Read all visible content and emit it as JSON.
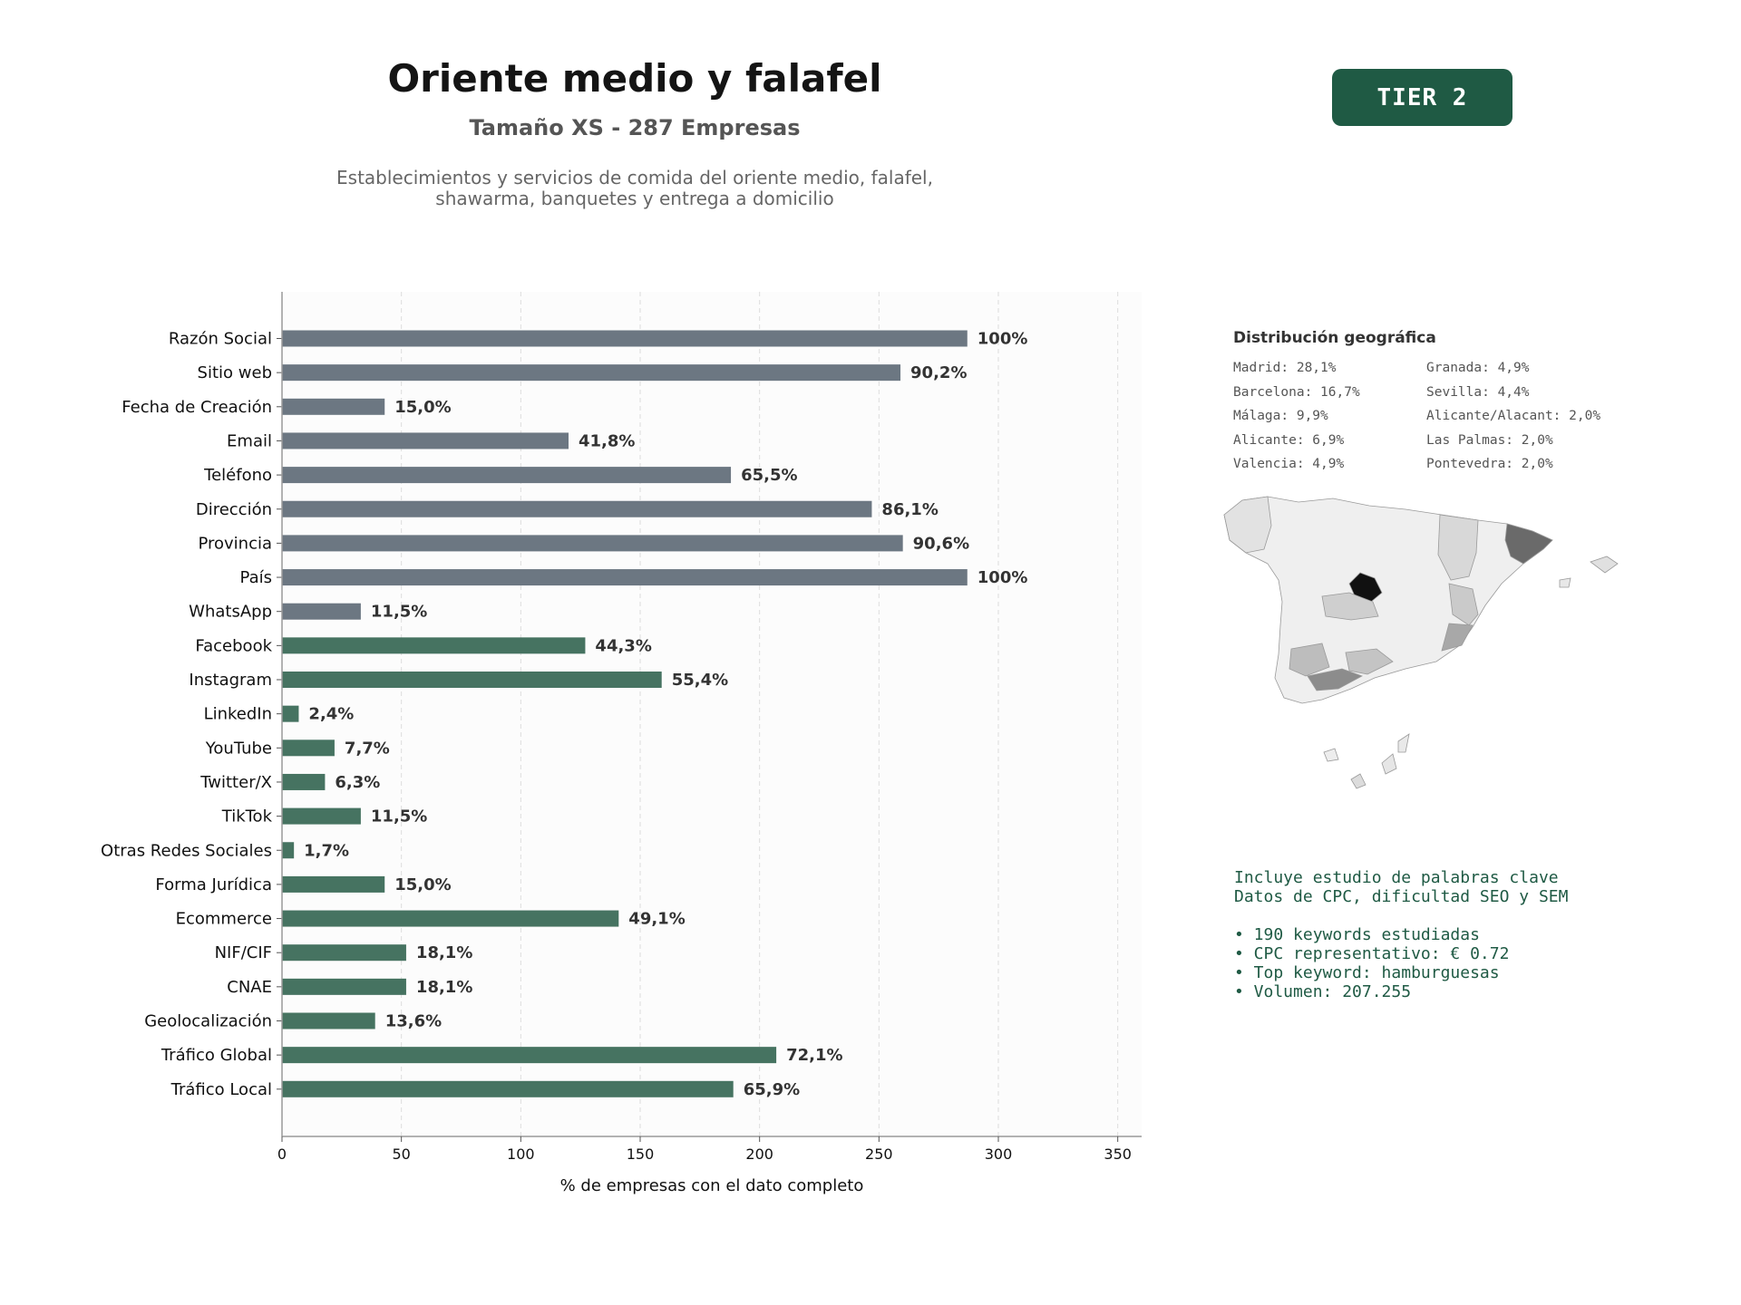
{
  "header": {
    "title": "Oriente medio y falafel",
    "subtitle": "Tamaño XS - 287 Empresas",
    "description_line1": "Establecimientos y servicios de comida del oriente medio, falafel,",
    "description_line2": "shawarma, banquetes y entrega a domicilio",
    "tier_label": "TIER 2"
  },
  "colors": {
    "gray_bar": "#6c7782",
    "green_bar": "#467361",
    "brand_dark": "#1f5a44",
    "plot_bg": "#fcfcfc"
  },
  "chart_data": {
    "type": "bar",
    "orientation": "horizontal",
    "categories": [
      "Razón Social",
      "Sitio web",
      "Fecha de Creación",
      "Email",
      "Teléfono",
      "Dirección",
      "Provincia",
      "País",
      "WhatsApp",
      "Facebook",
      "Instagram",
      "LinkedIn",
      "YouTube",
      "Twitter/X",
      "TikTok",
      "Otras Redes Sociales",
      "Forma Jurídica",
      "Ecommerce",
      "NIF/CIF",
      "CNAE",
      "Geolocalización",
      "Tráfico Global",
      "Tráfico Local"
    ],
    "values": [
      287,
      259,
      43,
      120,
      188,
      247,
      260,
      287,
      33,
      127,
      159,
      7,
      22,
      18,
      33,
      5,
      43,
      141,
      52,
      52,
      39,
      207,
      189
    ],
    "value_labels": [
      "100%",
      "90,2%",
      "15,0%",
      "41,8%",
      "65,5%",
      "86,1%",
      "90,6%",
      "100%",
      "11,5%",
      "44,3%",
      "55,4%",
      "2,4%",
      "7,7%",
      "6,3%",
      "11,5%",
      "1,7%",
      "15,0%",
      "49,1%",
      "18,1%",
      "18,1%",
      "13,6%",
      "72,1%",
      "65,9%"
    ],
    "bar_groups": [
      "gray",
      "gray",
      "gray",
      "gray",
      "gray",
      "gray",
      "gray",
      "gray",
      "gray",
      "green",
      "green",
      "green",
      "green",
      "green",
      "green",
      "green",
      "green",
      "green",
      "green",
      "green",
      "green",
      "green",
      "green"
    ],
    "xlabel": "% de empresas con el dato completo",
    "xlim": [
      0,
      360
    ],
    "xticks": [
      0,
      50,
      100,
      150,
      200,
      250,
      300,
      350
    ],
    "grid": "vertical dashed"
  },
  "geo": {
    "title": "Distribución geográfica",
    "items": [
      "Madrid: 28,1%",
      "Barcelona: 16,7%",
      "Málaga: 9,9%",
      "Alicante: 6,9%",
      "Valencia: 4,9%",
      "Granada: 4,9%",
      "Sevilla: 4,4%",
      "Alicante/Alacant: 2,0%",
      "Las Palmas: 2,0%",
      "Pontevedra: 2,0%"
    ]
  },
  "keywords": {
    "line1": "Incluye estudio de palabras clave",
    "line2": "Datos de CPC, dificultad SEO y SEM",
    "bullets": [
      "• 190 keywords estudiadas",
      "• CPC representativo: € 0.72",
      "• Top keyword: hamburguesas",
      "• Volumen: 207.255"
    ]
  }
}
